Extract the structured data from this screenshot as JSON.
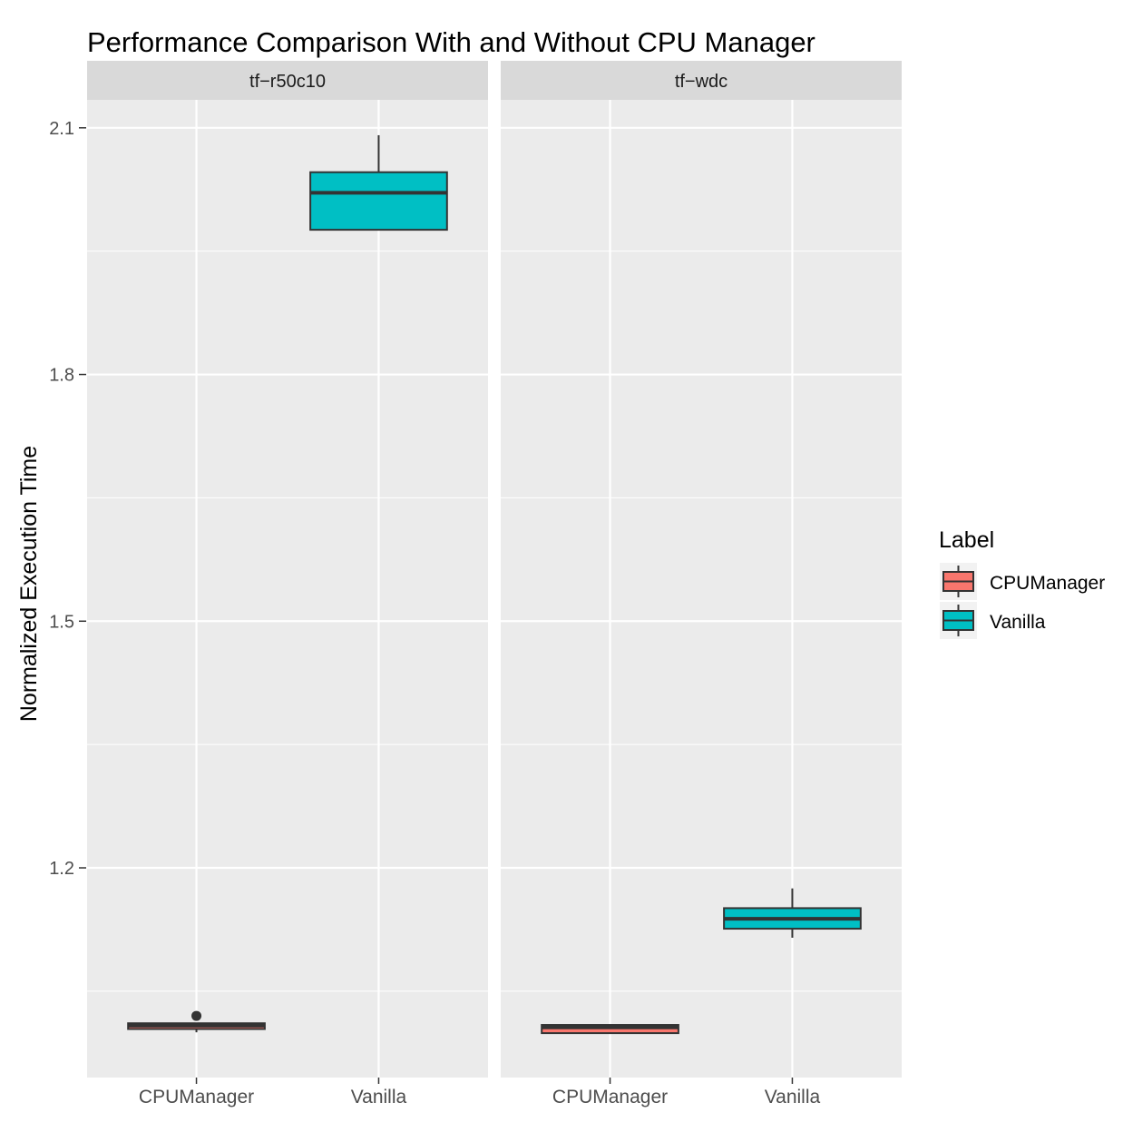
{
  "chart_data": {
    "type": "box",
    "title": "Performance Comparison With and Without CPU Manager",
    "ylabel": "Normalized Execution Time",
    "xlabel": "",
    "ylim": [
      0.945,
      2.134
    ],
    "yticks": [
      1.2,
      1.5,
      1.8,
      2.1
    ],
    "ytick_labels": [
      "1.2",
      "1.5",
      "1.8",
      "2.1"
    ],
    "grid": true,
    "categories": [
      "CPUManager",
      "Vanilla"
    ],
    "legend": {
      "title": "Label",
      "position": "right",
      "entries": [
        {
          "name": "CPUManager",
          "color": "#F8766D"
        },
        {
          "name": "Vanilla",
          "color": "#00BFC4"
        }
      ]
    },
    "facets": [
      {
        "name": "tf−r50c10",
        "boxes": [
          {
            "category": "CPUManager",
            "whisker_low": 1.0,
            "q1": 1.004,
            "median": 1.008,
            "q3": 1.011,
            "whisker_high": 1.011,
            "outliers": [
              1.02
            ]
          },
          {
            "category": "Vanilla",
            "whisker_low": 1.976,
            "q1": 1.976,
            "median": 2.021,
            "q3": 2.046,
            "whisker_high": 2.091,
            "outliers": []
          }
        ]
      },
      {
        "name": "tf−wdc",
        "boxes": [
          {
            "category": "CPUManager",
            "whisker_low": 0.999,
            "q1": 0.999,
            "median": 1.006,
            "q3": 1.009,
            "whisker_high": 1.009,
            "outliers": []
          },
          {
            "category": "Vanilla",
            "whisker_low": 1.115,
            "q1": 1.126,
            "median": 1.138,
            "q3": 1.151,
            "whisker_high": 1.175,
            "outliers": []
          }
        ]
      }
    ]
  }
}
